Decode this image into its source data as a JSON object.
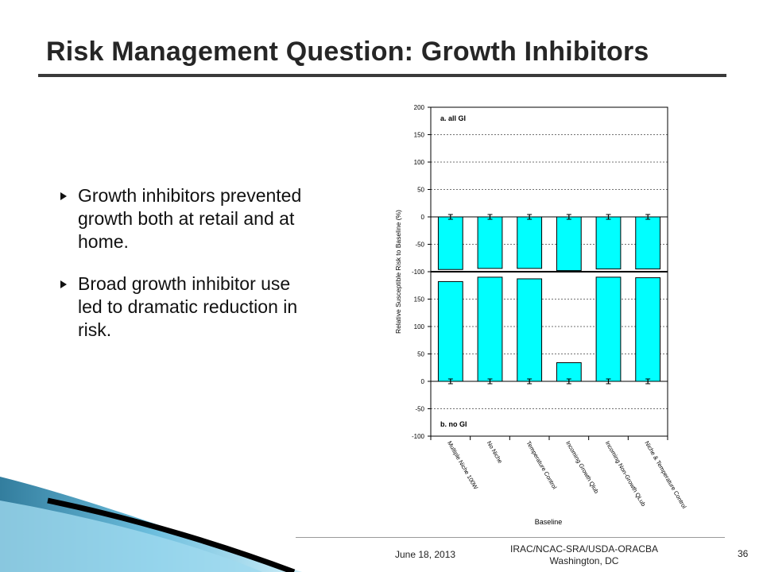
{
  "slide": {
    "title": "Risk Management Question: Growth Inhibitors",
    "bullets": [
      "Growth inhibitors prevented growth both at retail and at home.",
      "Broad growth inhibitor use led to dramatic reduction in risk."
    ],
    "footer": {
      "date": "June 18, 2013",
      "org_line1": "IRAC/NCAC-SRA/USDA-ORACBA",
      "org_line2": "Washington, DC",
      "page": "36"
    }
  },
  "colors": {
    "title": "#262626",
    "bar_fill": "#00ffff",
    "bar_stroke": "#000000",
    "swoosh_dark": "#1c6f93",
    "swoosh_light": "#9fd9ef"
  },
  "chart_data": [
    {
      "type": "bar",
      "panel_label": "a. all GI",
      "categories": [
        "Multiple Niche 100W",
        "No Niche",
        "Temperature Control",
        "Incoming Growth Qlub",
        "Incoming Non-Growth QLub",
        "Niche & Temperature Control"
      ],
      "values": [
        -96,
        -94,
        -94,
        -98,
        -95,
        -95
      ],
      "ylim": [
        -100,
        200
      ],
      "yticks": [
        "200",
        "150",
        "100",
        "50",
        "0",
        "-50",
        "-100"
      ]
    },
    {
      "type": "bar",
      "panel_label": "b. no GI",
      "categories": [
        "Multiple Niche 100W",
        "No Niche",
        "Temperature Control",
        "Incoming Growth Qlub",
        "Incoming Non-Growth QLub",
        "Niche & Temperature Control"
      ],
      "values": [
        182,
        190,
        187,
        34,
        190,
        189
      ],
      "ylim": [
        -100,
        200
      ],
      "yticks": [
        "150",
        "100",
        "50",
        "0",
        "-50",
        "-100"
      ]
    }
  ],
  "chart_labels": {
    "ylabel": "Relative Susceptible Risk to Baseline (%)",
    "xlabel": "Baseline"
  }
}
